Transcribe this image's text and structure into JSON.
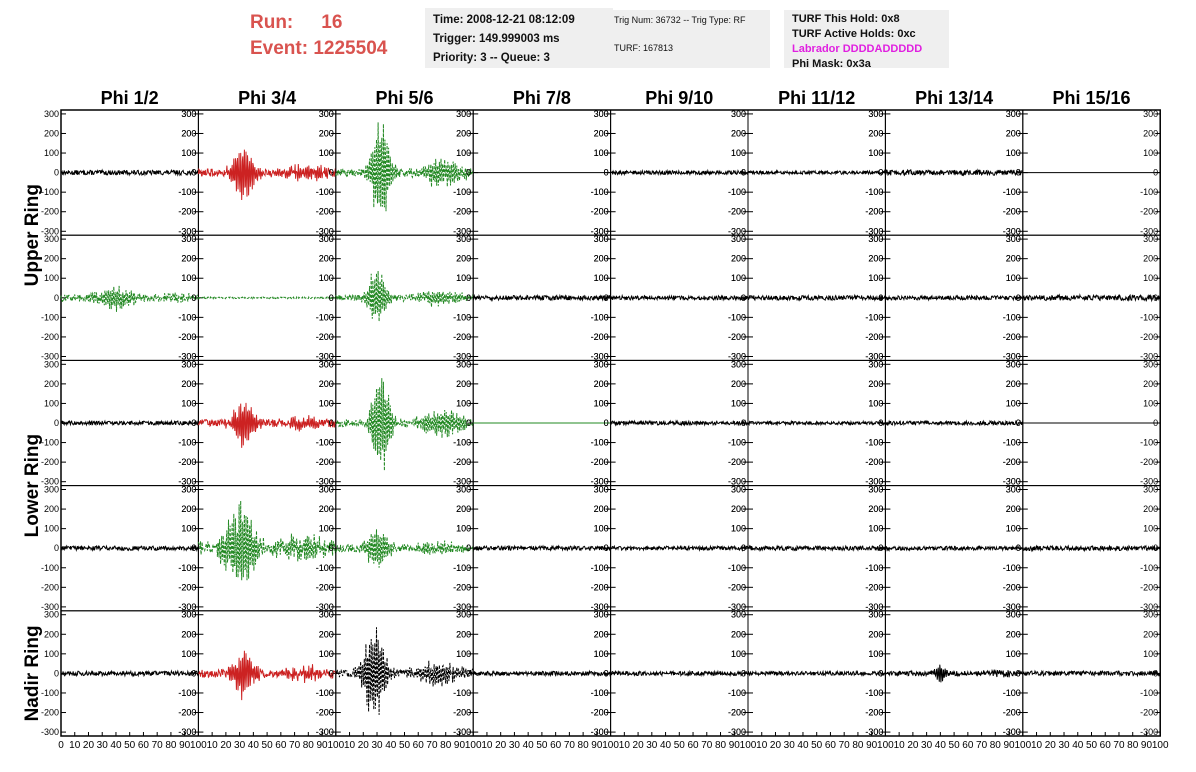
{
  "header": {
    "run_label": "Run:",
    "run_value": "16",
    "event_label": "Event:",
    "event_value": "1225504",
    "time": "Time: 2008-12-21 08:12:09",
    "trigger": "Trigger: 149.999003 ms",
    "priority": "Priority: 3 -- Queue: 3",
    "trig_num": "Trig Num: 36732 -- Trig Type: RF",
    "turf": "TURF: 167813",
    "turf_this_hold": "TURF This Hold: 0x8",
    "turf_active_holds": "TURF Active Holds: 0xc",
    "labrador": "Labrador DDDDADDDDD",
    "phi_mask": "Phi Mask: 0x3a"
  },
  "colors": {
    "header_red": "#d9534f",
    "labrador": "#e020e0",
    "trace_black": "#000000",
    "trace_red": "#cc2222",
    "trace_green": "#228822"
  },
  "chart_data": {
    "type": "line",
    "columns": [
      "Phi 1/2",
      "Phi 3/4",
      "Phi 5/6",
      "Phi 7/8",
      "Phi 9/10",
      "Phi 11/12",
      "Phi 13/14",
      "Phi 15/16"
    ],
    "row_labels": [
      "Upper Ring",
      "Lower Ring",
      "Nadir Ring"
    ],
    "rows": 5,
    "xlim": [
      0,
      100
    ],
    "ylim": [
      -320,
      320
    ],
    "yticks": [
      -300,
      -200,
      -100,
      0,
      100,
      200,
      300
    ],
    "xticks_first": [
      "0",
      "10",
      "20",
      "30",
      "40",
      "50",
      "60",
      "70",
      "80",
      "90",
      "100"
    ],
    "xticks_other": [
      "10",
      "20",
      "30",
      "40",
      "50",
      "60",
      "70",
      "80",
      "90",
      "100"
    ],
    "grid": false,
    "panels": [
      {
        "row": 0,
        "col": 0,
        "color": "black",
        "style": "solid",
        "noise": 12,
        "burst": null
      },
      {
        "row": 0,
        "col": 1,
        "color": "red",
        "style": "solid",
        "noise": 20,
        "burst": {
          "center": 33,
          "amp": 150,
          "width": 6
        }
      },
      {
        "row": 0,
        "col": 2,
        "color": "green",
        "style": "dashed",
        "noise": 20,
        "burst": {
          "center": 33,
          "amp": 310,
          "width": 5
        }
      },
      {
        "row": 0,
        "col": 3,
        "color": "black",
        "style": "solid",
        "noise": 0,
        "burst": null
      },
      {
        "row": 0,
        "col": 4,
        "color": "black",
        "style": "solid",
        "noise": 10,
        "burst": null
      },
      {
        "row": 0,
        "col": 5,
        "color": "black",
        "style": "solid",
        "noise": 9,
        "burst": null
      },
      {
        "row": 0,
        "col": 6,
        "color": "black",
        "style": "solid",
        "noise": 14,
        "burst": null
      },
      {
        "row": 0,
        "col": 7,
        "color": "black",
        "style": "solid",
        "noise": 0,
        "burst": null
      },
      {
        "row": 1,
        "col": 0,
        "color": "green",
        "style": "dashed",
        "noise": 18,
        "burst": {
          "center": 40,
          "amp": 60,
          "width": 10
        }
      },
      {
        "row": 1,
        "col": 1,
        "color": "green",
        "style": "dashed",
        "noise": 4,
        "burst": null
      },
      {
        "row": 1,
        "col": 2,
        "color": "green",
        "style": "dashed",
        "noise": 15,
        "burst": {
          "center": 30,
          "amp": 160,
          "width": 5
        }
      },
      {
        "row": 1,
        "col": 3,
        "color": "black",
        "style": "solid",
        "noise": 12,
        "burst": null
      },
      {
        "row": 1,
        "col": 4,
        "color": "black",
        "style": "solid",
        "noise": 11,
        "burst": null
      },
      {
        "row": 1,
        "col": 5,
        "color": "black",
        "style": "solid",
        "noise": 12,
        "burst": null
      },
      {
        "row": 1,
        "col": 6,
        "color": "black",
        "style": "solid",
        "noise": 11,
        "burst": null
      },
      {
        "row": 1,
        "col": 7,
        "color": "black",
        "style": "solid",
        "noise": 14,
        "burst": null
      },
      {
        "row": 2,
        "col": 0,
        "color": "black",
        "style": "solid",
        "noise": 10,
        "burst": null
      },
      {
        "row": 2,
        "col": 1,
        "color": "red",
        "style": "solid",
        "noise": 18,
        "burst": {
          "center": 33,
          "amp": 130,
          "width": 6
        }
      },
      {
        "row": 2,
        "col": 2,
        "color": "green",
        "style": "dashed",
        "noise": 20,
        "burst": {
          "center": 33,
          "amp": 310,
          "width": 5
        }
      },
      {
        "row": 2,
        "col": 3,
        "color": "green",
        "style": "solid",
        "noise": 0,
        "burst": null
      },
      {
        "row": 2,
        "col": 4,
        "color": "black",
        "style": "solid",
        "noise": 10,
        "burst": null
      },
      {
        "row": 2,
        "col": 5,
        "color": "black",
        "style": "solid",
        "noise": 8,
        "burst": null
      },
      {
        "row": 2,
        "col": 6,
        "color": "black",
        "style": "solid",
        "noise": 10,
        "burst": null
      },
      {
        "row": 2,
        "col": 7,
        "color": "black",
        "style": "solid",
        "noise": 0,
        "burst": null
      },
      {
        "row": 3,
        "col": 0,
        "color": "black",
        "style": "solid",
        "noise": 11,
        "burst": null
      },
      {
        "row": 3,
        "col": 1,
        "color": "green",
        "style": "dashed",
        "noise": 35,
        "burst": {
          "center": 30,
          "amp": 240,
          "width": 8
        }
      },
      {
        "row": 3,
        "col": 2,
        "color": "green",
        "style": "dashed",
        "noise": 18,
        "burst": {
          "center": 30,
          "amp": 120,
          "width": 6
        }
      },
      {
        "row": 3,
        "col": 3,
        "color": "black",
        "style": "solid",
        "noise": 11,
        "burst": null
      },
      {
        "row": 3,
        "col": 4,
        "color": "black",
        "style": "solid",
        "noise": 10,
        "burst": null
      },
      {
        "row": 3,
        "col": 5,
        "color": "black",
        "style": "solid",
        "noise": 11,
        "burst": null
      },
      {
        "row": 3,
        "col": 6,
        "color": "black",
        "style": "solid",
        "noise": 10,
        "burst": null
      },
      {
        "row": 3,
        "col": 7,
        "color": "black",
        "style": "solid",
        "noise": 12,
        "burst": null
      },
      {
        "row": 4,
        "col": 0,
        "color": "black",
        "style": "solid",
        "noise": 12,
        "burst": null
      },
      {
        "row": 4,
        "col": 1,
        "color": "red",
        "style": "solid",
        "noise": 22,
        "burst": {
          "center": 33,
          "amp": 130,
          "width": 6
        }
      },
      {
        "row": 4,
        "col": 2,
        "color": "black",
        "style": "dashed",
        "noise": 20,
        "burst": {
          "center": 28,
          "amp": 270,
          "width": 6
        }
      },
      {
        "row": 4,
        "col": 3,
        "color": "black",
        "style": "solid",
        "noise": 11,
        "burst": null
      },
      {
        "row": 4,
        "col": 4,
        "color": "black",
        "style": "solid",
        "noise": 11,
        "burst": null
      },
      {
        "row": 4,
        "col": 5,
        "color": "black",
        "style": "solid",
        "noise": 10,
        "burst": null
      },
      {
        "row": 4,
        "col": 6,
        "color": "black",
        "style": "solid",
        "noise": 12,
        "burst": {
          "center": 40,
          "amp": 50,
          "width": 3
        }
      },
      {
        "row": 4,
        "col": 7,
        "color": "black",
        "style": "solid",
        "noise": 12,
        "burst": null
      }
    ]
  }
}
